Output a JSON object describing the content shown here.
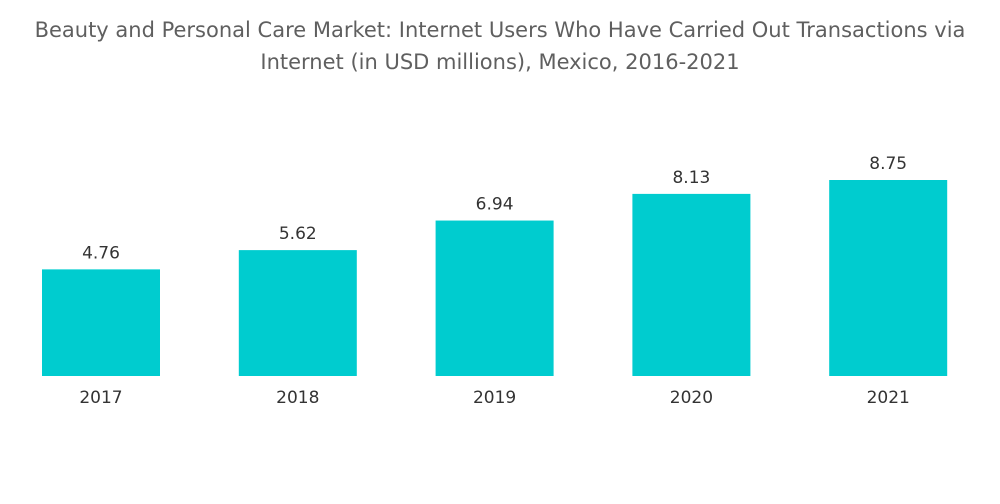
{
  "chart_data": {
    "type": "bar",
    "title_lines": [
      "Beauty and Personal Care Market: Internet Users Who Have Carried Out Transactions via",
      "Internet (in USD millions), Mexico, 2016-2021"
    ],
    "title": "Beauty and Personal Care Market: Internet Users Who Have Carried Out Transactions via Internet (in USD millions), Mexico, 2016-2021",
    "categories": [
      "2017",
      "2018",
      "2019",
      "2020",
      "2021"
    ],
    "values": [
      4.76,
      5.62,
      6.94,
      8.13,
      8.75
    ],
    "value_labels": [
      "4.76",
      "5.62",
      "6.94",
      "8.13",
      "8.75"
    ],
    "xlabel": "",
    "ylabel": "",
    "ylim": [
      0,
      9.5
    ],
    "grid": false,
    "bar_color": "#00cccf"
  }
}
